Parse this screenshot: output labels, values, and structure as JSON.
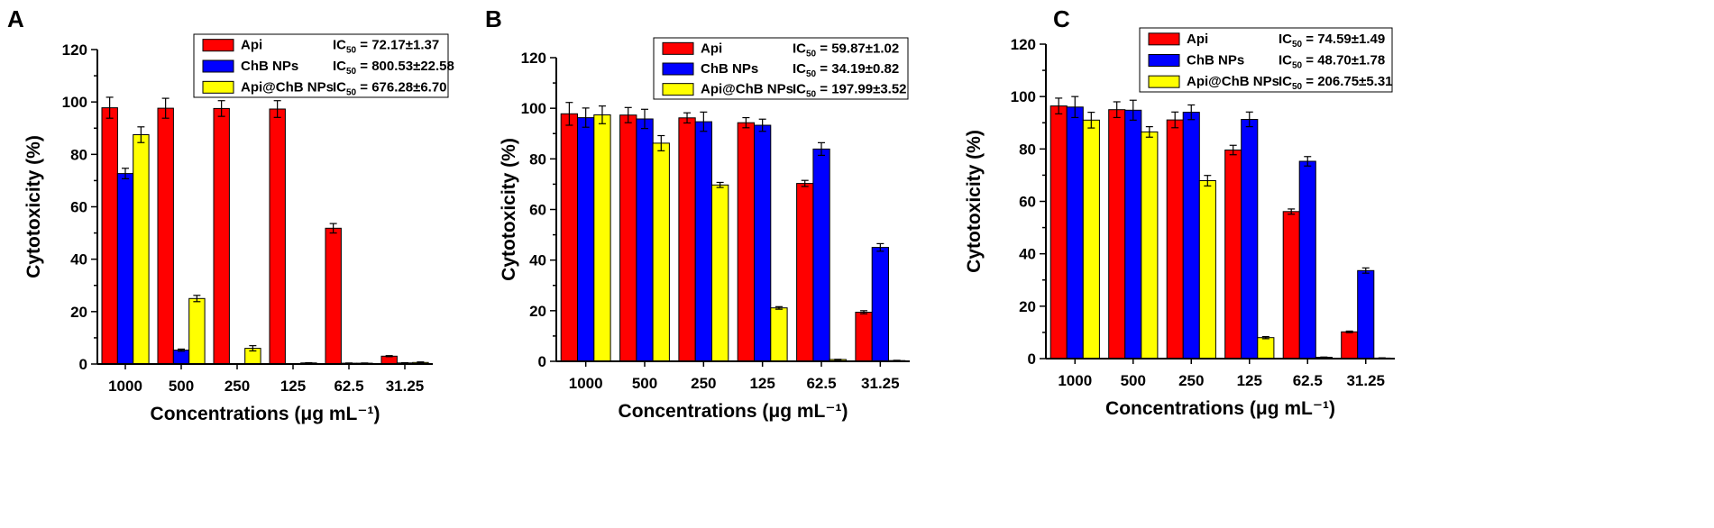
{
  "figure": {
    "colors": {
      "Api": "#ff0000",
      "ChB NPs": "#0000ff",
      "Api@ChB NPs": "#ffff00",
      "axis": "#000000"
    }
  },
  "chart_data": [
    {
      "panel": "A",
      "type": "bar",
      "categories": [
        "1000",
        "500",
        "250",
        "125",
        "62.5",
        "31.25"
      ],
      "xlabel": "Concentrations (μg mL⁻¹)",
      "ylabel": "Cytotoxicity (%)",
      "ylim": [
        0,
        120
      ],
      "yticks": [
        "0",
        "20",
        "40",
        "60",
        "80",
        "100",
        "120"
      ],
      "legend_position": "top-right",
      "series": [
        {
          "name": "Api",
          "ic50_label": "IC",
          "ic50_sub": "50",
          "ic50_value": " = 72.17±1.37",
          "values": [
            97.8,
            97.6,
            97.5,
            97.3,
            51.8,
            3.0
          ],
          "errors": [
            4.0,
            3.8,
            3.0,
            3.2,
            1.8,
            0.2
          ]
        },
        {
          "name": "ChB NPs",
          "ic50_label": "IC",
          "ic50_sub": "50",
          "ic50_value": " = 800.53±22.58",
          "values": [
            72.7,
            5.3,
            0,
            0,
            0.3,
            0.4
          ],
          "errors": [
            2.0,
            0.4,
            0,
            0,
            0.1,
            0.1
          ]
        },
        {
          "name": "Api@ChB NPs",
          "ic50_label": "IC",
          "ic50_sub": "50",
          "ic50_value": " = 676.28±6.70",
          "values": [
            87.5,
            25.0,
            6.0,
            0.4,
            0.3,
            0.6
          ],
          "errors": [
            3.0,
            1.2,
            1.0,
            0.1,
            0.1,
            0.2
          ]
        }
      ]
    },
    {
      "panel": "B",
      "type": "bar",
      "categories": [
        "1000",
        "500",
        "250",
        "125",
        "62.5",
        "31.25"
      ],
      "xlabel": "Concentrations (μg mL⁻¹)",
      "ylabel": "Cytotoxicity (%)",
      "ylim": [
        0,
        120
      ],
      "yticks": [
        "0",
        "20",
        "40",
        "60",
        "80",
        "100",
        "120"
      ],
      "legend_position": "top-right",
      "series": [
        {
          "name": "Api",
          "ic50_label": "IC",
          "ic50_sub": "50",
          "ic50_value": " = 59.87±1.02",
          "values": [
            97.8,
            97.3,
            96.2,
            94.3,
            70.3,
            19.4
          ],
          "errors": [
            4.5,
            3.0,
            2.0,
            2.0,
            1.2,
            0.6
          ]
        },
        {
          "name": "ChB NPs",
          "ic50_label": "IC",
          "ic50_sub": "50",
          "ic50_value": " = 34.19±0.82",
          "values": [
            96.3,
            95.8,
            94.7,
            93.3,
            83.9,
            45.0
          ],
          "errors": [
            3.8,
            3.8,
            3.8,
            2.4,
            2.5,
            1.5
          ]
        },
        {
          "name": "Api@ChB NPs",
          "ic50_label": "IC",
          "ic50_sub": "50",
          "ic50_value": " = 197.99±3.52",
          "values": [
            97.4,
            86.2,
            69.7,
            21.1,
            0.7,
            0.3
          ],
          "errors": [
            3.5,
            3.0,
            1.0,
            0.5,
            0.1,
            0.1
          ]
        }
      ]
    },
    {
      "panel": "C",
      "type": "bar",
      "categories": [
        "1000",
        "500",
        "250",
        "125",
        "62.5",
        "31.25"
      ],
      "xlabel": "Concentrations (μg mL⁻¹)",
      "ylabel": "Cytotoxicity (%)",
      "ylim": [
        0,
        120
      ],
      "yticks": [
        "0",
        "20",
        "40",
        "60",
        "80",
        "100",
        "120"
      ],
      "legend_position": "top-right",
      "series": [
        {
          "name": "Api",
          "ic50_label": "IC",
          "ic50_sub": "50",
          "ic50_value": " = 74.59±1.49",
          "values": [
            96.4,
            95.0,
            91.1,
            79.6,
            56.1,
            10.2
          ],
          "errors": [
            3.0,
            3.0,
            3.0,
            1.8,
            1.0,
            0.3
          ]
        },
        {
          "name": "ChB NPs",
          "ic50_label": "IC",
          "ic50_sub": "50",
          "ic50_value": " = 48.70±1.78",
          "values": [
            96.0,
            94.8,
            94.0,
            91.3,
            75.3,
            33.6
          ],
          "errors": [
            4.0,
            3.8,
            2.8,
            2.8,
            1.8,
            1.0
          ]
        },
        {
          "name": "Api@ChB NPs",
          "ic50_label": "IC",
          "ic50_sub": "50",
          "ic50_value": " = 206.75±5.31",
          "values": [
            91.0,
            86.5,
            67.9,
            8.0,
            0.5,
            0.2
          ],
          "errors": [
            3.0,
            2.0,
            2.0,
            0.4,
            0.1,
            0.1
          ]
        }
      ]
    }
  ]
}
